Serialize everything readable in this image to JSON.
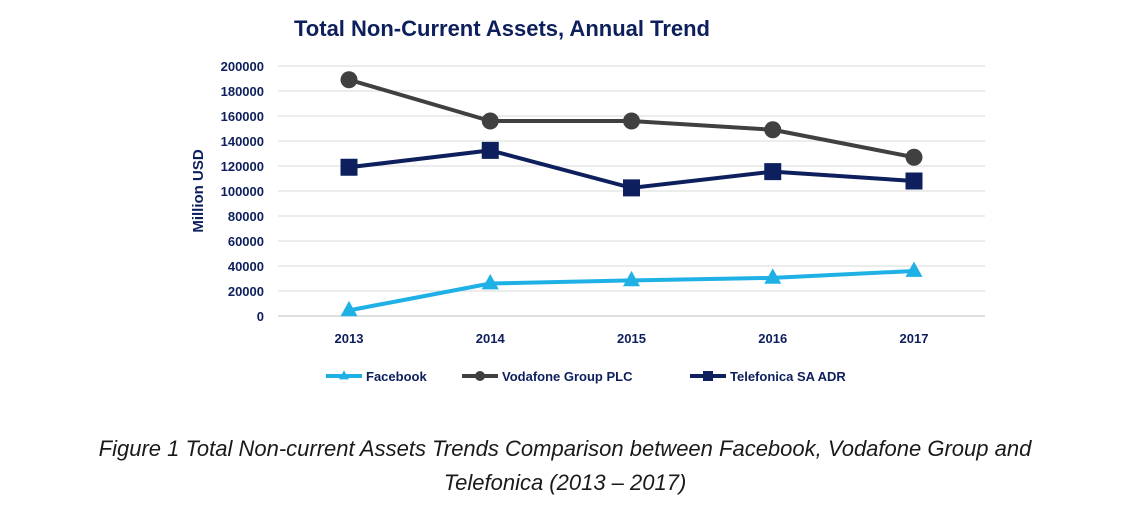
{
  "chart_data": {
    "type": "line",
    "title": "Total Non-Current Assets, Annual Trend",
    "ylabel": "Million USD",
    "xlabel": "",
    "categories": [
      "2013",
      "2014",
      "2015",
      "2016",
      "2017"
    ],
    "ylim": [
      0,
      200000
    ],
    "yticks": [
      "0",
      "20000",
      "40000",
      "60000",
      "80000",
      "100000",
      "120000",
      "140000",
      "160000",
      "180000",
      "200000"
    ],
    "grid": true,
    "legend": "bottom",
    "series": [
      {
        "name": "Facebook",
        "values": [
          4500,
          26000,
          28500,
          30500,
          36000
        ],
        "color": "#1fb1e6",
        "marker": "triangle"
      },
      {
        "name": "Vodafone Group PLC",
        "values": [
          189000,
          156000,
          156000,
          149000,
          127000
        ],
        "color": "#404040",
        "marker": "circle"
      },
      {
        "name": "Telefonica SA ADR",
        "values": [
          119000,
          132500,
          102500,
          115500,
          108000
        ],
        "color": "#0d1f5c",
        "marker": "square"
      }
    ]
  },
  "caption": {
    "line1": "Figure 1 Total Non-current Assets Trends Comparison between Facebook, Vodafone Group and",
    "line2": "Telefonica (2013 – 2017)"
  }
}
